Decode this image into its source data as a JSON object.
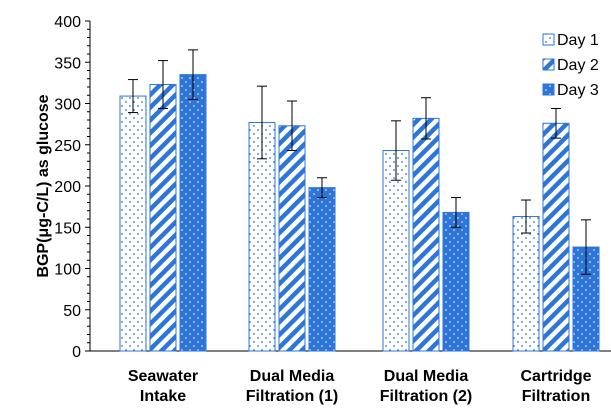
{
  "chart_data": {
    "type": "bar",
    "ylabel": "BGP(μg-C/L) as glucose",
    "xlabel": "",
    "ylim": [
      0,
      400
    ],
    "yticks": [
      0,
      50,
      100,
      150,
      200,
      250,
      300,
      350,
      400
    ],
    "grid": false,
    "legend_position": "top-right",
    "categories": [
      [
        "Seawater",
        "Intake"
      ],
      [
        "Dual Media",
        "Filtration (1)"
      ],
      [
        "Dual Media",
        "Filtration (2)"
      ],
      [
        "Cartridge",
        "Filtration"
      ]
    ],
    "series": [
      {
        "name": "Day 1",
        "pattern": "dots",
        "color": "#2e75d9",
        "values": [
          309,
          277,
          243,
          163
        ],
        "error": [
          20,
          44,
          36,
          20
        ]
      },
      {
        "name": "Day 2",
        "pattern": "stripes",
        "color": "#2e75d9",
        "values": [
          323,
          273,
          282,
          276
        ],
        "error": [
          29,
          30,
          25,
          18
        ]
      },
      {
        "name": "Day 3",
        "pattern": "solid-dots",
        "color": "#2e75d9",
        "values": [
          335,
          198,
          168,
          126
        ],
        "error": [
          30,
          12,
          18,
          33
        ]
      }
    ]
  }
}
